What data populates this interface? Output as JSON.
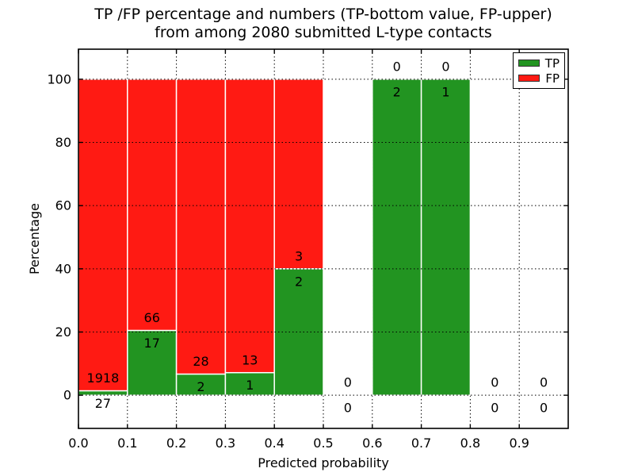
{
  "chart_data": {
    "type": "bar",
    "stacked": true,
    "title": "TP /FP percentage and numbers (TP-bottom value, FP-upper)\nfrom among 2080 submitted L-type contacts",
    "title_line1": "TP /FP percentage and numbers (TP-bottom value, FP-upper)",
    "title_line2": "from among 2080 submitted L-type contacts",
    "xlabel": "Predicted probability",
    "ylabel": "Percentage",
    "xlim": [
      0.0,
      1.0
    ],
    "ylim": [
      -10.5,
      109.5
    ],
    "xticks": [
      "0.0",
      "0.1",
      "0.2",
      "0.3",
      "0.4",
      "0.5",
      "0.6",
      "0.7",
      "0.8",
      "0.9"
    ],
    "yticks": [
      "0",
      "20",
      "40",
      "60",
      "80",
      "100"
    ],
    "grid": true,
    "grid_style": "dotted",
    "colors": {
      "tp": "#229421",
      "fp": "#ff1a13",
      "bar_edge": "#ffffff"
    },
    "legend": {
      "position": "upper right",
      "entries": [
        {
          "label": "TP",
          "color": "#229421"
        },
        {
          "label": "FP",
          "color": "#ff1a13"
        }
      ]
    },
    "total_contacts": 2080,
    "bins": [
      {
        "range": [
          0.0,
          0.1
        ],
        "tp": 27,
        "fp": 1918,
        "tp_pct": 1.39,
        "bar_top_pct": 100
      },
      {
        "range": [
          0.1,
          0.2
        ],
        "tp": 17,
        "fp": 66,
        "tp_pct": 20.48,
        "bar_top_pct": 100
      },
      {
        "range": [
          0.2,
          0.3
        ],
        "tp": 2,
        "fp": 28,
        "tp_pct": 6.67,
        "bar_top_pct": 100
      },
      {
        "range": [
          0.3,
          0.4
        ],
        "tp": 1,
        "fp": 13,
        "tp_pct": 7.14,
        "bar_top_pct": 100
      },
      {
        "range": [
          0.4,
          0.5
        ],
        "tp": 2,
        "fp": 3,
        "tp_pct": 40.0,
        "bar_top_pct": 100
      },
      {
        "range": [
          0.5,
          0.6
        ],
        "tp": 0,
        "fp": 0,
        "tp_pct": 0,
        "bar_top_pct": 0
      },
      {
        "range": [
          0.6,
          0.7
        ],
        "tp": 2,
        "fp": 0,
        "tp_pct": 100,
        "bar_top_pct": 100
      },
      {
        "range": [
          0.7,
          0.8
        ],
        "tp": 1,
        "fp": 0,
        "tp_pct": 100,
        "bar_top_pct": 100
      },
      {
        "range": [
          0.8,
          0.9
        ],
        "tp": 0,
        "fp": 0,
        "tp_pct": 0,
        "bar_top_pct": 0
      },
      {
        "range": [
          0.9,
          1.0
        ],
        "tp": 0,
        "fp": 0,
        "tp_pct": 0,
        "bar_top_pct": 0
      }
    ]
  }
}
